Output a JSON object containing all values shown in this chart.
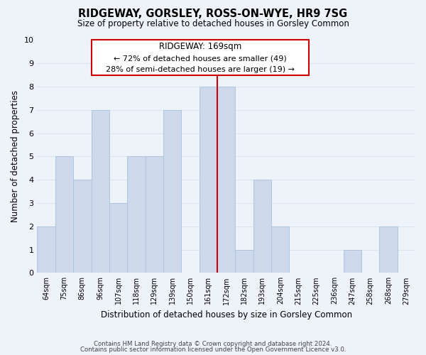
{
  "title": "RIDGEWAY, GORSLEY, ROSS-ON-WYE, HR9 7SG",
  "subtitle": "Size of property relative to detached houses in Gorsley Common",
  "xlabel": "Distribution of detached houses by size in Gorsley Common",
  "ylabel": "Number of detached properties",
  "bins": [
    "64sqm",
    "75sqm",
    "86sqm",
    "96sqm",
    "107sqm",
    "118sqm",
    "129sqm",
    "139sqm",
    "150sqm",
    "161sqm",
    "172sqm",
    "182sqm",
    "193sqm",
    "204sqm",
    "215sqm",
    "225sqm",
    "236sqm",
    "247sqm",
    "258sqm",
    "268sqm",
    "279sqm"
  ],
  "counts": [
    2,
    5,
    4,
    7,
    3,
    5,
    5,
    7,
    0,
    8,
    8,
    1,
    4,
    2,
    0,
    0,
    0,
    1,
    0,
    2,
    0
  ],
  "bar_color": "#cdd9ea",
  "bar_edge_color": "#b0c4de",
  "marker_bin_index": 10,
  "marker_color": "#cc0000",
  "annotation_title": "RIDGEWAY: 169sqm",
  "annotation_line1": "← 72% of detached houses are smaller (49)",
  "annotation_line2": "28% of semi-detached houses are larger (19) →",
  "annotation_box_color": "#ffffff",
  "annotation_box_edge": "#cc0000",
  "grid_color": "#d8e4f0",
  "background_color": "#eef3fa",
  "ylim": [
    0,
    10
  ],
  "footer1": "Contains HM Land Registry data © Crown copyright and database right 2024.",
  "footer2": "Contains public sector information licensed under the Open Government Licence v3.0."
}
